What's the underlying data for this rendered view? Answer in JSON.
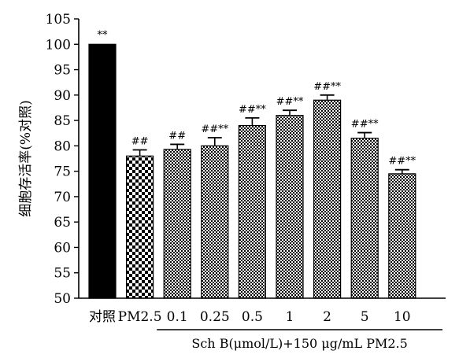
{
  "chart_data": {
    "type": "bar",
    "ylabel": "细胞存活率(%对照)",
    "ylim": [
      50,
      105
    ],
    "yticks": [
      50,
      55,
      60,
      65,
      70,
      75,
      80,
      85,
      90,
      95,
      100,
      105
    ],
    "categories": [
      "对照",
      "PM2.5",
      "0.1",
      "0.25",
      "0.5",
      "1",
      "2",
      "5",
      "10"
    ],
    "values": [
      100,
      78,
      79.3,
      80,
      84,
      86,
      89,
      81.5,
      74.5
    ],
    "errors": [
      0,
      1.2,
      1.0,
      1.6,
      1.5,
      1.0,
      1.0,
      1.1,
      0.8
    ],
    "annotations": [
      "**",
      "##",
      "##",
      "##**",
      "##**",
      "##**",
      "##**",
      "##**",
      "##**"
    ],
    "group_label": "Sch B(μmol/L)+150 μg/mL PM2.5",
    "group_start_index": 2,
    "bar_patterns": [
      "solid",
      "checker",
      "fine",
      "fine",
      "fine",
      "fine",
      "fine",
      "fine",
      "fine"
    ],
    "colors": {
      "solid": "#000000",
      "pattern_dark": "#000000",
      "pattern_light": "#ffffff"
    }
  }
}
